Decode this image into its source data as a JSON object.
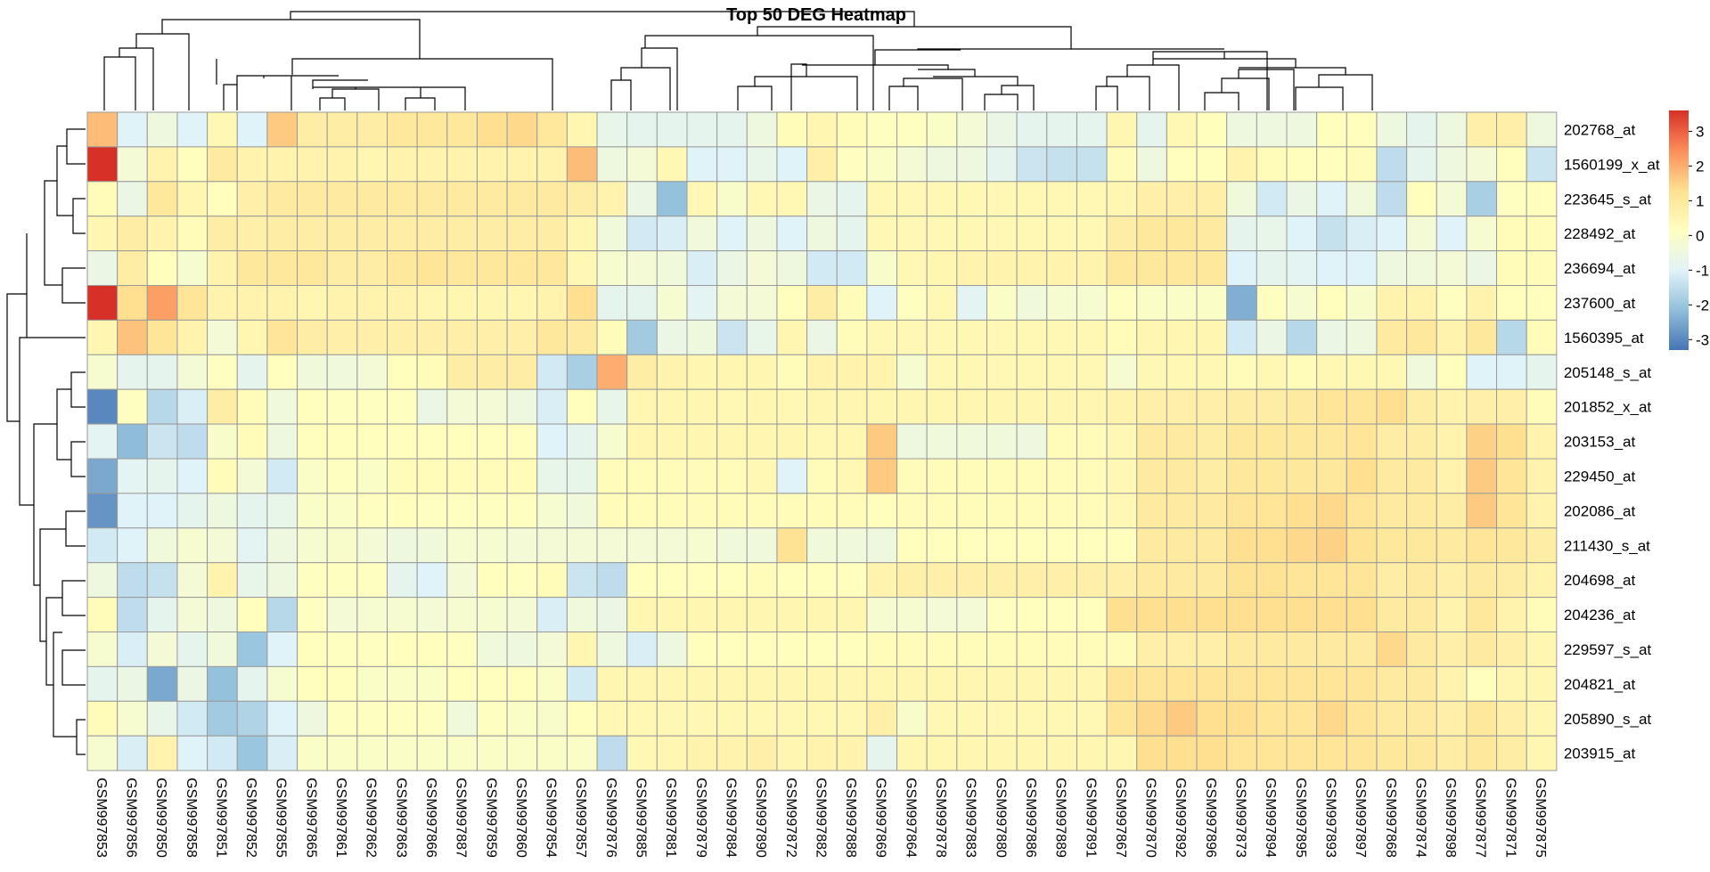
{
  "chart_data": {
    "type": "heatmap",
    "title": "Top 50 DEG Heatmap",
    "columns": [
      "GSM997853",
      "GSM997856",
      "GSM997850",
      "GSM997858",
      "GSM997851",
      "GSM997852",
      "GSM997855",
      "GSM997865",
      "GSM997861",
      "GSM997862",
      "GSM997863",
      "GSM997866",
      "GSM997887",
      "GSM997859",
      "GSM997860",
      "GSM997854",
      "GSM997857",
      "GSM997876",
      "GSM997885",
      "GSM997881",
      "GSM997879",
      "GSM997884",
      "GSM997890",
      "GSM997872",
      "GSM997882",
      "GSM997888",
      "GSM997869",
      "GSM997864",
      "GSM997878",
      "GSM997883",
      "GSM997880",
      "GSM997886",
      "GSM997889",
      "GSM997891",
      "GSM997867",
      "GSM997870",
      "GSM997892",
      "GSM997896",
      "GSM997873",
      "GSM997894",
      "GSM997895",
      "GSM997893",
      "GSM997897",
      "GSM997868",
      "GSM997874",
      "GSM997898",
      "GSM997877",
      "GSM997871",
      "GSM997875"
    ],
    "rows": [
      "202768_at",
      "1560199_x_at",
      "223645_s_at",
      "228492_at",
      "236694_at",
      "237600_at",
      "1560395_at",
      "205148_s_at",
      "201852_x_at",
      "203153_at",
      "229450_at",
      "202086_at",
      "211430_s_at",
      "204698_at",
      "204236_at",
      "229597_s_at",
      "204821_at",
      "205890_s_at",
      "203915_at"
    ],
    "values": [
      [
        1.8,
        -1.0,
        -0.5,
        -1.0,
        0.4,
        -1.0,
        1.6,
        0.8,
        0.8,
        0.8,
        1.0,
        1.0,
        1.0,
        1.3,
        1.4,
        1.0,
        0.5,
        -0.7,
        -0.8,
        -0.8,
        -0.8,
        -0.8,
        -0.5,
        0.3,
        0.5,
        0.3,
        0.1,
        0.1,
        0.0,
        -0.3,
        -0.6,
        -0.8,
        -0.8,
        -0.8,
        0.5,
        -0.8,
        0.4,
        0.2,
        -0.5,
        -0.5,
        -0.5,
        0.2,
        0.2,
        -0.5,
        -0.8,
        -0.5,
        0.7,
        0.7,
        -0.5
      ],
      [
        3.6,
        -0.3,
        0.6,
        0.2,
        0.9,
        0.6,
        0.6,
        0.6,
        0.6,
        0.5,
        0.6,
        0.6,
        0.6,
        0.6,
        0.6,
        0.6,
        1.8,
        -0.5,
        -0.3,
        0.4,
        -1.0,
        -1.0,
        -0.7,
        -1.0,
        0.7,
        0.1,
        0.0,
        -0.3,
        -0.5,
        -0.5,
        -0.8,
        -1.3,
        -1.4,
        -1.4,
        0.3,
        -0.5,
        0.2,
        0.2,
        0.6,
        0.3,
        0.2,
        0.2,
        0.3,
        -1.5,
        -0.8,
        -0.5,
        -0.3,
        0.2,
        -1.3
      ],
      [
        0.3,
        -0.6,
        1.0,
        0.5,
        0.2,
        0.7,
        0.9,
        0.9,
        0.9,
        0.9,
        0.9,
        0.9,
        0.9,
        0.9,
        0.9,
        0.9,
        0.8,
        0.6,
        -0.6,
        -2.1,
        0.4,
        -0.1,
        0.4,
        0.4,
        -0.6,
        -0.8,
        0.4,
        0.4,
        0.4,
        0.4,
        0.4,
        0.4,
        0.4,
        0.4,
        0.5,
        0.7,
        0.7,
        0.7,
        -0.4,
        -1.2,
        -0.6,
        -1.0,
        -0.4,
        -1.5,
        0.2,
        -0.3,
        -1.8,
        0.1,
        0.2
      ],
      [
        0.5,
        0.8,
        0.6,
        0.3,
        0.8,
        0.7,
        0.8,
        0.8,
        0.8,
        0.8,
        0.8,
        0.8,
        0.8,
        0.8,
        0.8,
        0.8,
        0.5,
        -0.4,
        -1.2,
        -1.1,
        -0.4,
        -1.0,
        -0.5,
        -1.0,
        -0.5,
        -0.8,
        0.4,
        0.4,
        0.4,
        0.4,
        0.4,
        0.4,
        0.4,
        0.4,
        0.8,
        1.0,
        1.0,
        0.9,
        -0.8,
        -0.7,
        -1.0,
        -1.4,
        -1.1,
        -1.0,
        -0.3,
        -1.0,
        -0.2,
        0.3,
        0.3
      ],
      [
        -0.6,
        0.8,
        0.2,
        -0.2,
        0.6,
        1.0,
        1.0,
        1.0,
        0.8,
        0.8,
        1.0,
        1.1,
        1.0,
        1.0,
        1.0,
        1.0,
        0.4,
        -0.2,
        -0.3,
        -0.4,
        -1.1,
        -0.6,
        -0.3,
        -0.5,
        -1.2,
        -1.2,
        -0.1,
        0.4,
        0.5,
        0.6,
        0.6,
        0.6,
        0.6,
        0.6,
        1.0,
        1.0,
        1.0,
        1.0,
        -1.0,
        -0.8,
        -0.9,
        -1.0,
        -1.0,
        -0.5,
        -0.4,
        -0.3,
        -0.6,
        0.3,
        0.3
      ],
      [
        3.6,
        1.3,
        2.2,
        1.1,
        0.6,
        0.6,
        0.6,
        0.5,
        0.6,
        0.6,
        0.6,
        0.5,
        0.5,
        0.5,
        0.5,
        0.6,
        1.3,
        -0.8,
        -0.8,
        -0.2,
        -0.9,
        -0.3,
        -0.3,
        0.2,
        0.8,
        0.3,
        -1.0,
        0.1,
        0.4,
        -0.9,
        0.0,
        -0.4,
        -0.2,
        -0.2,
        0.1,
        0.0,
        0.0,
        0.0,
        -2.4,
        0.1,
        -0.2,
        0.2,
        -0.1,
        0.6,
        0.6,
        0.1,
        0.6,
        0.2,
        0.2
      ],
      [
        0.5,
        1.7,
        1.1,
        0.6,
        -0.3,
        0.5,
        1.1,
        0.8,
        0.7,
        0.7,
        0.7,
        0.7,
        0.7,
        0.7,
        0.7,
        1.0,
        0.9,
        0.3,
        -1.9,
        -0.6,
        -0.5,
        -1.3,
        -0.7,
        0.5,
        -0.6,
        0.3,
        0.4,
        0.4,
        0.4,
        0.4,
        0.4,
        0.4,
        0.4,
        0.4,
        0.3,
        0.5,
        0.5,
        0.5,
        -1.2,
        -0.6,
        -1.6,
        -0.6,
        -0.5,
        0.9,
        1.0,
        0.6,
        1.0,
        -1.6,
        0.3
      ],
      [
        -0.2,
        -0.8,
        -0.8,
        -0.3,
        0.1,
        -0.8,
        0.2,
        -0.4,
        -0.4,
        -0.3,
        0.2,
        0.3,
        0.8,
        0.8,
        0.8,
        -1.2,
        -1.8,
        2.0,
        0.8,
        0.6,
        0.5,
        0.5,
        0.5,
        0.3,
        0.6,
        0.6,
        0.6,
        -0.2,
        0.4,
        0.4,
        0.4,
        0.4,
        0.4,
        0.4,
        -0.2,
        0.4,
        0.4,
        0.4,
        0.3,
        0.4,
        0.3,
        0.4,
        0.4,
        0.4,
        -0.4,
        0.2,
        -1.0,
        -1.0,
        -0.8
      ],
      [
        -3.0,
        0.1,
        -1.6,
        -1.1,
        0.8,
        0.3,
        -0.4,
        0.2,
        0.1,
        0.1,
        0.1,
        -0.6,
        -0.3,
        -0.3,
        -0.5,
        -1.1,
        0.2,
        -0.7,
        0.5,
        0.5,
        0.5,
        0.4,
        0.5,
        0.4,
        0.5,
        0.5,
        0.5,
        0.5,
        0.5,
        0.5,
        0.5,
        0.5,
        0.5,
        0.5,
        0.6,
        0.7,
        0.7,
        0.7,
        0.8,
        0.8,
        0.9,
        1.1,
        1.1,
        1.3,
        0.8,
        0.6,
        0.7,
        0.7,
        0.3
      ],
      [
        -0.9,
        -2.2,
        -1.3,
        -1.5,
        -0.1,
        0.3,
        -0.5,
        0.2,
        0.2,
        0.2,
        0.2,
        0.2,
        0.2,
        0.2,
        0.2,
        -1.0,
        -0.8,
        -0.2,
        0.5,
        0.5,
        0.5,
        0.5,
        0.5,
        0.5,
        0.4,
        0.5,
        1.6,
        -0.5,
        -0.4,
        -0.4,
        -0.4,
        -0.5,
        0.3,
        0.3,
        0.4,
        0.9,
        0.9,
        0.8,
        1.0,
        1.0,
        1.0,
        1.0,
        1.1,
        0.8,
        0.8,
        0.6,
        1.5,
        1.3,
        0.6
      ],
      [
        -2.5,
        -0.9,
        -0.8,
        -1.0,
        0.3,
        -0.3,
        -1.2,
        0.0,
        0.1,
        0.0,
        0.3,
        0.3,
        0.3,
        0.3,
        0.3,
        -0.7,
        -0.7,
        0.3,
        0.3,
        0.3,
        0.3,
        0.3,
        0.4,
        -1.0,
        0.3,
        0.4,
        1.6,
        0.3,
        0.3,
        0.3,
        0.3,
        0.3,
        0.3,
        0.3,
        0.4,
        0.9,
        0.9,
        0.8,
        1.0,
        1.0,
        1.0,
        1.0,
        1.3,
        0.9,
        0.9,
        0.6,
        1.6,
        1.1,
        0.6
      ],
      [
        -2.8,
        -1.0,
        -1.0,
        -0.8,
        -0.5,
        -0.8,
        -0.7,
        0.0,
        0.0,
        0.1,
        0.2,
        0.1,
        0.1,
        0.1,
        0.1,
        -0.2,
        -0.4,
        0.3,
        0.3,
        0.3,
        0.3,
        0.3,
        0.3,
        0.3,
        0.3,
        0.3,
        0.2,
        0.3,
        0.3,
        0.3,
        0.3,
        0.3,
        0.3,
        0.3,
        0.4,
        0.9,
        0.9,
        0.9,
        1.1,
        1.1,
        1.3,
        1.4,
        1.1,
        0.9,
        0.9,
        0.8,
        1.6,
        1.1,
        0.6
      ],
      [
        -1.2,
        -1.0,
        -0.4,
        -0.2,
        -0.3,
        -0.9,
        -0.5,
        -0.2,
        -0.1,
        -0.3,
        -0.5,
        -0.4,
        -0.2,
        -0.2,
        -0.3,
        -0.3,
        -0.3,
        -0.3,
        -0.3,
        -0.3,
        -0.2,
        -0.4,
        -0.4,
        1.2,
        -0.4,
        -0.4,
        -0.5,
        0.2,
        0.2,
        0.2,
        0.2,
        0.2,
        0.2,
        0.2,
        0.2,
        0.9,
        0.9,
        0.9,
        1.3,
        1.3,
        1.4,
        1.5,
        1.2,
        1.0,
        1.0,
        0.9,
        1.1,
        1.0,
        0.8
      ],
      [
        -0.5,
        -1.5,
        -1.4,
        -0.3,
        0.6,
        -0.7,
        -0.5,
        0.1,
        0.1,
        0.1,
        -0.8,
        -1.0,
        -0.3,
        0.2,
        0.1,
        0.3,
        -1.3,
        -1.5,
        0.2,
        0.2,
        0.2,
        0.2,
        0.3,
        0.2,
        0.2,
        0.2,
        0.6,
        0.7,
        0.7,
        0.7,
        0.7,
        0.7,
        0.7,
        0.7,
        0.7,
        0.9,
        0.9,
        0.9,
        1.2,
        1.2,
        1.1,
        1.1,
        1.1,
        0.8,
        0.9,
        0.7,
        0.9,
        0.8,
        0.6
      ],
      [
        0.3,
        -1.5,
        -0.8,
        -0.3,
        -0.5,
        0.2,
        -1.6,
        0.1,
        -0.3,
        -0.2,
        -0.2,
        -0.3,
        -0.2,
        -0.2,
        -0.3,
        -1.1,
        -0.4,
        -0.6,
        0.5,
        0.5,
        0.5,
        0.5,
        0.5,
        0.5,
        0.5,
        0.5,
        -0.2,
        -0.2,
        -0.3,
        -0.3,
        0.1,
        0.2,
        0.2,
        0.2,
        1.3,
        1.3,
        1.3,
        1.3,
        1.3,
        1.3,
        1.3,
        1.3,
        1.3,
        0.9,
        0.9,
        0.6,
        1.0,
        0.6,
        0.3
      ],
      [
        -0.2,
        -1.1,
        -0.3,
        -0.8,
        -0.4,
        -2.0,
        -1.0,
        0.2,
        0.1,
        0.1,
        0.2,
        0.2,
        0.1,
        -0.4,
        -0.5,
        -0.3,
        0.5,
        -0.5,
        -1.1,
        -0.5,
        0.2,
        0.2,
        0.2,
        0.2,
        0.2,
        0.2,
        0.3,
        0.3,
        0.3,
        0.3,
        0.3,
        0.3,
        0.3,
        0.3,
        0.3,
        0.7,
        0.7,
        0.7,
        0.9,
        0.9,
        0.9,
        0.9,
        0.9,
        1.4,
        0.9,
        0.7,
        0.9,
        0.7,
        0.5
      ],
      [
        -0.8,
        -0.6,
        -2.5,
        -0.6,
        -2.1,
        -0.8,
        -0.2,
        0.2,
        0.2,
        0.0,
        0.0,
        0.0,
        0.2,
        0.2,
        0.2,
        0.0,
        -1.2,
        0.5,
        0.5,
        0.5,
        0.5,
        0.5,
        0.5,
        0.5,
        0.5,
        0.5,
        0.5,
        0.5,
        0.5,
        0.5,
        0.5,
        0.5,
        0.5,
        0.5,
        1.1,
        1.1,
        1.1,
        1.1,
        1.1,
        1.1,
        1.1,
        1.1,
        1.1,
        0.9,
        0.9,
        0.6,
        0.2,
        0.5,
        0.5
      ],
      [
        0.3,
        -0.2,
        -0.7,
        -1.2,
        -1.9,
        -1.7,
        -1.0,
        -0.5,
        0.1,
        0.1,
        0.1,
        0.1,
        -0.4,
        0.1,
        0.0,
        -0.1,
        0.2,
        0.4,
        0.4,
        0.4,
        0.4,
        0.4,
        0.4,
        0.4,
        0.4,
        0.4,
        0.7,
        -0.1,
        0.4,
        0.4,
        0.4,
        0.4,
        0.4,
        0.4,
        1.1,
        1.4,
        1.6,
        1.3,
        1.3,
        1.1,
        1.1,
        1.4,
        1.1,
        0.9,
        0.9,
        0.7,
        1.0,
        0.7,
        0.5
      ],
      [
        -0.2,
        -1.1,
        0.6,
        -1.0,
        -1.2,
        -2.0,
        -1.1,
        0.0,
        0.0,
        0.0,
        0.0,
        0.0,
        0.0,
        0.0,
        0.0,
        0.0,
        0.0,
        -1.5,
        0.4,
        0.5,
        0.6,
        0.6,
        0.7,
        0.5,
        0.6,
        0.6,
        -0.8,
        0.5,
        0.5,
        0.5,
        0.5,
        0.5,
        0.5,
        0.5,
        0.5,
        1.3,
        1.3,
        1.3,
        1.1,
        1.1,
        1.1,
        1.1,
        1.1,
        1.0,
        1.0,
        0.8,
        1.0,
        0.8,
        0.5
      ]
    ],
    "color_scale": {
      "colors": [
        "#4575B4",
        "#91BFDB",
        "#E0F3F8",
        "#FFFFBF",
        "#FEE090",
        "#FC8D59",
        "#D73027"
      ],
      "domain": [
        -3.3,
        3.6
      ]
    },
    "legend_ticks": [
      3,
      2,
      1,
      0,
      -1,
      -2,
      -3
    ],
    "legend_tick_labels": [
      "3",
      "2",
      "1",
      "0",
      "-1",
      "-2",
      "-3"
    ],
    "legend_placement": "right",
    "grid": true
  }
}
